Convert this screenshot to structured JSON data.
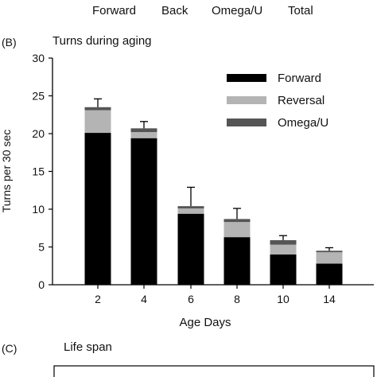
{
  "top_header": {
    "labels": [
      "Forward",
      "Back",
      "Omega/U",
      "Total"
    ]
  },
  "panel_b": {
    "letter": "(B)"
  },
  "panel_c": {
    "letter": "(C)",
    "title": "Life span"
  },
  "chart_data": {
    "type": "bar",
    "stacked": true,
    "title": "Turns during aging",
    "xlabel": "Age Days",
    "ylabel": "Turns per 30 sec",
    "ylim": [
      0,
      30
    ],
    "yticks": [
      0,
      5,
      10,
      15,
      20,
      25,
      30
    ],
    "categories": [
      "2",
      "4",
      "6",
      "8",
      "10",
      "14"
    ],
    "series": [
      {
        "name": "Forward",
        "color": "#000000",
        "values": [
          20.1,
          19.4,
          9.4,
          6.3,
          4.0,
          2.8
        ]
      },
      {
        "name": "Reversal",
        "color": "#b4b4b4",
        "values": [
          3.0,
          0.8,
          0.7,
          2.0,
          1.3,
          1.5
        ]
      },
      {
        "name": "Omega/U",
        "color": "#555555",
        "values": [
          0.4,
          0.5,
          0.3,
          0.4,
          0.6,
          0.2
        ]
      }
    ],
    "error_upper": [
      24.6,
      21.6,
      12.9,
      10.1,
      6.5,
      4.9
    ],
    "legend_position": "top-right",
    "grid": false
  }
}
